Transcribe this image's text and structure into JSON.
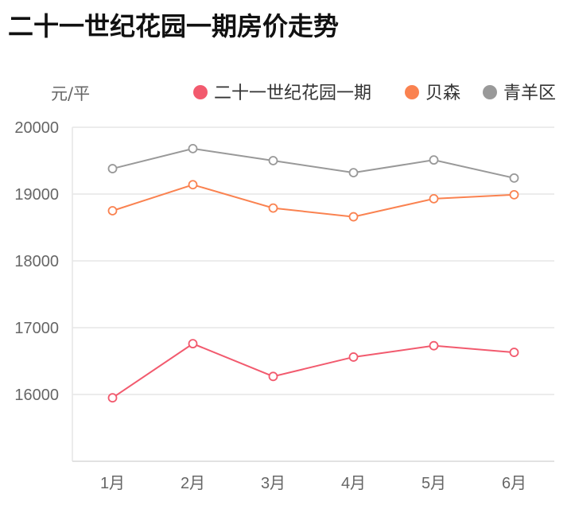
{
  "chart_data": {
    "type": "line",
    "title": "二十一世纪花园一期房价走势",
    "ylabel": "元/平",
    "xlabel": "",
    "categories": [
      "1月",
      "2月",
      "3月",
      "4月",
      "5月",
      "6月"
    ],
    "ylim": [
      15000,
      20000
    ],
    "yticks": [
      16000,
      17000,
      18000,
      19000,
      20000
    ],
    "grid": true,
    "legend_position": "top-right",
    "series": [
      {
        "name": "二十一世纪花园一期",
        "color": "#f25a6e",
        "values": [
          15950,
          16760,
          16270,
          16560,
          16730,
          16630
        ]
      },
      {
        "name": "贝森",
        "color": "#fa8250",
        "values": [
          18750,
          19140,
          18790,
          18660,
          18930,
          18990
        ]
      },
      {
        "name": "青羊区",
        "color": "#999999",
        "values": [
          19380,
          19680,
          19500,
          19320,
          19510,
          19240
        ]
      }
    ]
  }
}
